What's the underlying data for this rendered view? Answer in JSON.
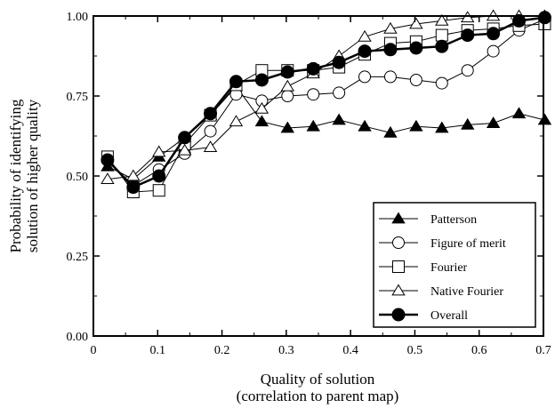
{
  "chart_data": {
    "type": "line",
    "xlabel_line1": "Quality of solution",
    "xlabel_line2": "(correlation to parent map)",
    "ylabel_line1": "Probability of identifying",
    "ylabel_line2": "solution of higher quality",
    "xlim": [
      0,
      0.7
    ],
    "ylim": [
      0,
      1
    ],
    "x_ticks": [
      "0",
      "0.1",
      "0.2",
      "0.3",
      "0.4",
      "0.5",
      "0.6",
      "0.7"
    ],
    "x_tick_values": [
      0,
      0.1,
      0.2,
      0.3,
      0.4,
      0.5,
      0.6,
      0.7
    ],
    "y_ticks": [
      "0.00",
      "0.25",
      "0.50",
      "0.75",
      "1.00"
    ],
    "y_tick_values": [
      0,
      0.25,
      0.5,
      0.75,
      1.0
    ],
    "grid": false,
    "legend_position": "bottom-right",
    "x": [
      0.022,
      0.062,
      0.102,
      0.142,
      0.182,
      0.222,
      0.262,
      0.302,
      0.342,
      0.382,
      0.422,
      0.462,
      0.502,
      0.542,
      0.582,
      0.622,
      0.662,
      0.702
    ],
    "series": [
      {
        "name": "Patterson",
        "marker": "triangle-filled",
        "line_width": 1,
        "values": [
          0.53,
          0.49,
          0.56,
          0.62,
          0.69,
          0.78,
          0.67,
          0.65,
          0.655,
          0.675,
          0.655,
          0.635,
          0.655,
          0.65,
          0.66,
          0.665,
          0.695,
          0.675
        ]
      },
      {
        "name": "Figure of merit",
        "marker": "circle-open",
        "line_width": 1,
        "values": [
          0.55,
          0.47,
          0.52,
          0.57,
          0.64,
          0.755,
          0.735,
          0.75,
          0.755,
          0.76,
          0.81,
          0.81,
          0.8,
          0.79,
          0.83,
          0.89,
          0.955,
          0.99
        ]
      },
      {
        "name": "Fourier",
        "marker": "square-open",
        "line_width": 1,
        "values": [
          0.56,
          0.45,
          0.455,
          0.6,
          0.69,
          0.785,
          0.83,
          0.83,
          0.83,
          0.84,
          0.88,
          0.915,
          0.92,
          0.94,
          0.955,
          0.96,
          0.97,
          0.975
        ]
      },
      {
        "name": "Native Fourier",
        "marker": "triangle-open",
        "line_width": 1,
        "values": [
          0.49,
          0.5,
          0.575,
          0.58,
          0.59,
          0.67,
          0.71,
          0.78,
          0.82,
          0.875,
          0.935,
          0.96,
          0.975,
          0.985,
          0.995,
          1.0,
          1.0,
          1.0
        ]
      },
      {
        "name": "Overall",
        "marker": "circle-filled",
        "line_width": 2.5,
        "values": [
          0.55,
          0.465,
          0.5,
          0.62,
          0.695,
          0.795,
          0.8,
          0.825,
          0.835,
          0.855,
          0.89,
          0.895,
          0.9,
          0.905,
          0.94,
          0.945,
          0.985,
          0.995
        ]
      }
    ]
  }
}
